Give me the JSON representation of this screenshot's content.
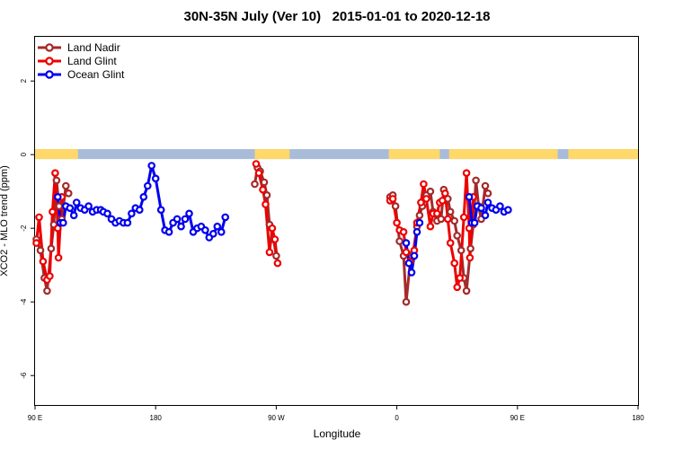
{
  "chart_data": {
    "type": "line",
    "title": "30N-35N July (Ver 10)   2015-01-01 to 2020-12-18",
    "xlabel": "Longitude",
    "ylabel": "XCO2 - MLO trend (ppm)",
    "x_ticks": [
      {
        "value": 90,
        "label": "90 E"
      },
      {
        "value": 180,
        "label": "180"
      },
      {
        "value": 270,
        "label": "90 W"
      },
      {
        "value": 360,
        "label": "0"
      },
      {
        "value": 450,
        "label": "90 E"
      },
      {
        "value": 540,
        "label": "180"
      }
    ],
    "xlim": [
      90,
      540
    ],
    "y_ticks": [
      2,
      0,
      -2,
      -4,
      -6
    ],
    "ylim": [
      -6.8,
      3.2
    ],
    "legend_position": "top-left",
    "land_color": "#FFD86A",
    "ocean_color": "#A8BCDA",
    "land_ranges": [
      [
        90,
        122
      ],
      [
        254,
        280
      ],
      [
        354,
        392
      ],
      [
        399,
        480
      ],
      [
        488,
        540
      ]
    ],
    "series": [
      {
        "name": "Land Nadir",
        "color": "#A52A2A",
        "segments": [
          [
            [
              91,
              -2.3
            ],
            [
              94,
              -2.6
            ],
            [
              97,
              -3.35
            ],
            [
              99,
              -3.7
            ],
            [
              102,
              -2.55
            ],
            [
              104,
              -1.9
            ],
            [
              106,
              -0.7
            ],
            [
              108,
              -1.4
            ],
            [
              110,
              -1.75
            ],
            [
              113,
              -0.85
            ],
            [
              115,
              -1.05
            ]
          ],
          [
            [
              254,
              -0.8
            ],
            [
              256,
              -0.35
            ],
            [
              258,
              -0.45
            ],
            [
              261,
              -0.75
            ],
            [
              263,
              -1.1
            ],
            [
              265,
              -1.9
            ],
            [
              268,
              -2.3
            ],
            [
              270,
              -2.75
            ]
          ],
          [
            [
              355,
              -1.15
            ],
            [
              357,
              -1.1
            ],
            [
              359,
              -1.4
            ],
            [
              362,
              -2.35
            ],
            [
              365,
              -2.75
            ],
            [
              367,
              -4.0
            ],
            [
              370,
              -2.9
            ],
            [
              372,
              -2.7
            ],
            [
              375,
              -1.95
            ],
            [
              377,
              -1.65
            ],
            [
              379,
              -1.4
            ],
            [
              382,
              -1.1
            ],
            [
              385,
              -1.0
            ],
            [
              387,
              -1.55
            ],
            [
              390,
              -1.8
            ],
            [
              393,
              -1.75
            ],
            [
              395,
              -0.95
            ],
            [
              398,
              -1.2
            ],
            [
              400,
              -1.55
            ],
            [
              403,
              -1.8
            ],
            [
              405,
              -2.2
            ],
            [
              408,
              -2.6
            ],
            [
              410,
              -3.35
            ],
            [
              412,
              -3.7
            ],
            [
              415,
              -2.55
            ],
            [
              417,
              -1.9
            ],
            [
              419,
              -0.7
            ],
            [
              421,
              -1.4
            ],
            [
              423,
              -1.75
            ],
            [
              426,
              -0.85
            ],
            [
              428,
              -1.05
            ]
          ]
        ]
      },
      {
        "name": "Land Glint",
        "color": "#EE0000",
        "segments": [
          [
            [
              91,
              -2.4
            ],
            [
              93,
              -1.7
            ],
            [
              96,
              -2.9
            ],
            [
              99,
              -3.4
            ],
            [
              101,
              -3.3
            ],
            [
              103,
              -1.55
            ],
            [
              105,
              -0.5
            ],
            [
              107,
              -2.0
            ],
            [
              107.5,
              -2.8
            ],
            [
              110,
              -1.15
            ]
          ],
          [
            [
              255,
              -0.25
            ],
            [
              257,
              -0.5
            ],
            [
              260,
              -0.95
            ],
            [
              262,
              -1.35
            ],
            [
              265,
              -2.65
            ],
            [
              267,
              -2.0
            ],
            [
              269,
              -2.3
            ],
            [
              271,
              -2.95
            ]
          ],
          [
            [
              355,
              -1.25
            ],
            [
              357,
              -1.2
            ],
            [
              360,
              -1.85
            ],
            [
              362,
              -2.05
            ],
            [
              365,
              -2.1
            ],
            [
              367,
              -2.65
            ],
            [
              370,
              -2.9
            ],
            [
              373,
              -2.6
            ],
            [
              375,
              -1.85
            ],
            [
              378,
              -1.3
            ],
            [
              380,
              -0.8
            ],
            [
              382,
              -1.2
            ],
            [
              385,
              -1.95
            ],
            [
              387,
              -1.6
            ],
            [
              390,
              -1.6
            ],
            [
              392,
              -1.3
            ],
            [
              394,
              -1.25
            ],
            [
              396,
              -1.05
            ],
            [
              398,
              -1.75
            ],
            [
              400,
              -2.4
            ],
            [
              403,
              -2.95
            ],
            [
              405,
              -3.6
            ],
            [
              407,
              -3.35
            ],
            [
              410,
              -1.7
            ],
            [
              412,
              -0.5
            ],
            [
              414,
              -2.0
            ],
            [
              414.5,
              -2.8
            ],
            [
              417,
              -1.15
            ]
          ]
        ]
      },
      {
        "name": "Ocean Glint",
        "color": "#0000EE",
        "segments": [
          [
            [
              107,
              -1.15
            ],
            [
              109,
              -1.85
            ],
            [
              111,
              -1.85
            ],
            [
              113,
              -1.4
            ],
            [
              116,
              -1.45
            ],
            [
              119,
              -1.65
            ],
            [
              121,
              -1.3
            ],
            [
              124,
              -1.45
            ],
            [
              127,
              -1.5
            ],
            [
              130,
              -1.4
            ],
            [
              133,
              -1.55
            ],
            [
              136,
              -1.5
            ],
            [
              139,
              -1.5
            ],
            [
              141,
              -1.55
            ],
            [
              144,
              -1.6
            ],
            [
              147,
              -1.75
            ],
            [
              150,
              -1.85
            ],
            [
              153,
              -1.8
            ],
            [
              156,
              -1.85
            ],
            [
              159,
              -1.85
            ],
            [
              162,
              -1.6
            ],
            [
              165,
              -1.45
            ],
            [
              168,
              -1.5
            ],
            [
              171,
              -1.15
            ],
            [
              174,
              -0.85
            ],
            [
              177,
              -0.3
            ],
            [
              180,
              -0.65
            ],
            [
              184,
              -1.5
            ],
            [
              187,
              -2.05
            ],
            [
              190,
              -2.1
            ],
            [
              193,
              -1.85
            ],
            [
              196,
              -1.75
            ],
            [
              199,
              -1.95
            ],
            [
              202,
              -1.75
            ],
            [
              205,
              -1.6
            ],
            [
              208,
              -2.1
            ],
            [
              211,
              -2.0
            ],
            [
              214,
              -1.95
            ],
            [
              217,
              -2.05
            ],
            [
              220,
              -2.25
            ],
            [
              223,
              -2.15
            ],
            [
              226,
              -1.95
            ],
            [
              229,
              -2.1
            ],
            [
              232,
              -1.7
            ]
          ],
          [
            [
              367,
              -2.4
            ],
            [
              369,
              -2.95
            ],
            [
              371,
              -3.2
            ],
            [
              373,
              -2.75
            ],
            [
              375,
              -2.1
            ],
            [
              377,
              -1.85
            ]
          ],
          [
            [
              414,
              -1.15
            ],
            [
              416,
              -1.85
            ],
            [
              418,
              -1.85
            ],
            [
              420,
              -1.4
            ],
            [
              423,
              -1.45
            ],
            [
              426,
              -1.65
            ],
            [
              428,
              -1.3
            ],
            [
              431,
              -1.45
            ],
            [
              434,
              -1.5
            ],
            [
              437,
              -1.4
            ],
            [
              440,
              -1.55
            ],
            [
              443,
              -1.5
            ]
          ]
        ]
      }
    ]
  }
}
